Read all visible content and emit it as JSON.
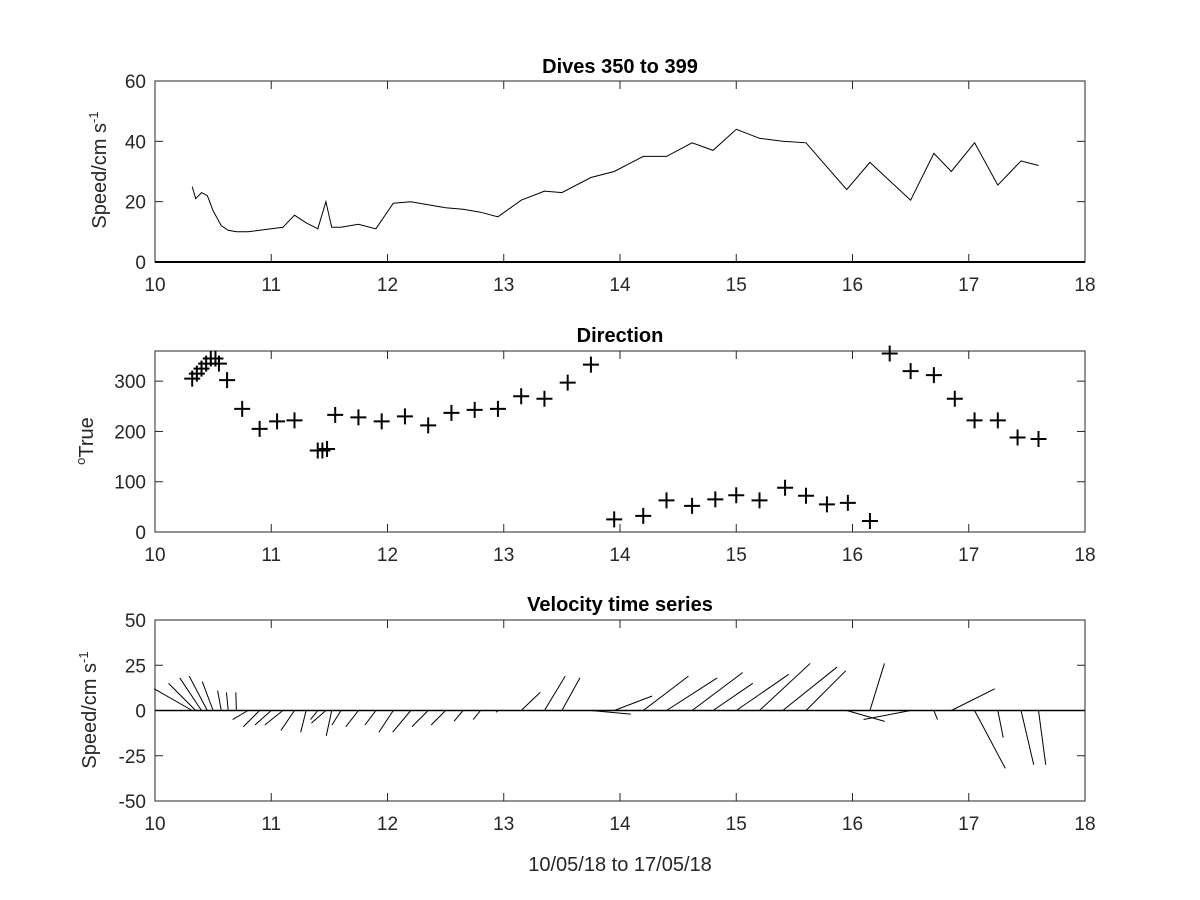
{
  "chart_data": [
    {
      "type": "line",
      "title": "Dives 350 to 399",
      "ylabel": "Speed/cm s",
      "ylabel_superscript": "-1",
      "xlim": [
        10,
        18
      ],
      "ylim": [
        0,
        60
      ],
      "xticks": [
        10,
        11,
        12,
        13,
        14,
        15,
        16,
        17,
        18
      ],
      "yticks": [
        0,
        20,
        40,
        60
      ],
      "color": "#000000",
      "series": [
        {
          "x": [
            10.32,
            10.35,
            10.4,
            10.45,
            10.5,
            10.57,
            10.63,
            10.7,
            10.8,
            10.9,
            11.0,
            11.1,
            11.2,
            11.3,
            11.4,
            11.47,
            11.52,
            11.6,
            11.75,
            11.9,
            12.05,
            12.2,
            12.35,
            12.5,
            12.65,
            12.8,
            12.95,
            13.15,
            13.35,
            13.5,
            13.75,
            13.95,
            14.2,
            14.4,
            14.62,
            14.8,
            15.0,
            15.2,
            15.4,
            15.6,
            15.95,
            16.15,
            16.5,
            16.7,
            16.85,
            17.05,
            17.25,
            17.45,
            17.6
          ],
          "y": [
            25,
            21,
            23,
            22,
            17,
            12,
            10.5,
            10,
            10,
            10.5,
            11,
            11.5,
            15.5,
            13,
            11,
            20,
            11.5,
            11.5,
            12.5,
            11,
            19.5,
            20,
            19,
            18,
            17.5,
            16.5,
            15,
            20.5,
            23.5,
            23,
            28,
            30,
            35,
            35,
            39.5,
            37,
            44,
            41,
            40,
            39.5,
            24,
            33,
            20.5,
            36,
            30,
            39.5,
            25.5,
            33.5,
            32
          ]
        }
      ]
    },
    {
      "type": "scatter",
      "title": "Direction",
      "ylabel": "True",
      "ylabel_prefix_superscript": "o",
      "xlim": [
        10,
        18
      ],
      "ylim": [
        0,
        360
      ],
      "xticks": [
        10,
        11,
        12,
        13,
        14,
        15,
        16,
        17,
        18
      ],
      "yticks": [
        0,
        100,
        200,
        300
      ],
      "marker": "+",
      "color": "#000000",
      "series": [
        {
          "x": [
            10.32,
            10.36,
            10.4,
            10.44,
            10.48,
            10.52,
            10.55,
            10.62,
            10.75,
            10.9,
            11.05,
            11.2,
            11.4,
            11.44,
            11.48,
            11.55,
            11.75,
            11.95,
            12.15,
            12.35,
            12.55,
            12.75,
            12.95,
            13.15,
            13.35,
            13.55,
            13.75,
            13.95,
            14.2,
            14.4,
            14.62,
            14.82,
            15.0,
            15.2,
            15.42,
            15.6,
            15.78,
            15.96,
            16.15,
            16.32,
            16.5,
            16.7,
            16.88,
            17.05,
            17.25,
            17.42,
            17.6
          ],
          "y": [
            305,
            315,
            325,
            335,
            345,
            345,
            335,
            302,
            245,
            205,
            220,
            222,
            162,
            162,
            165,
            233,
            228,
            220,
            230,
            212,
            237,
            243,
            245,
            270,
            265,
            297,
            333,
            25,
            32,
            63,
            52,
            65,
            73,
            63,
            88,
            72,
            55,
            58,
            22,
            355,
            320,
            312,
            265,
            222,
            222,
            188,
            185
          ]
        }
      ]
    },
    {
      "type": "line",
      "subtype": "stick-vector",
      "title": "Velocity time series",
      "ylabel": "Speed/cm s",
      "ylabel_superscript": "-1",
      "xlabel": "10/05/18 to 17/05/18",
      "xlim": [
        10,
        18
      ],
      "ylim": [
        -50,
        50
      ],
      "xticks": [
        10,
        11,
        12,
        13,
        14,
        15,
        16,
        17,
        18
      ],
      "yticks": [
        -50,
        -25,
        0,
        25,
        50
      ],
      "color": "#000000",
      "series": [
        {
          "x": [
            10.32,
            10.35,
            10.4,
            10.45,
            10.5,
            10.57,
            10.63,
            10.7,
            10.8,
            10.9,
            11.0,
            11.1,
            11.2,
            11.3,
            11.4,
            11.47,
            11.52,
            11.6,
            11.75,
            11.9,
            12.05,
            12.2,
            12.35,
            12.5,
            12.65,
            12.8,
            12.95,
            13.15,
            13.35,
            13.5,
            13.75,
            13.95,
            14.2,
            14.4,
            14.62,
            14.8,
            15.0,
            15.2,
            15.4,
            15.6,
            15.95,
            16.15,
            16.5,
            16.7,
            16.85,
            17.05,
            17.25,
            17.45,
            17.6
          ],
          "u": [
            -21,
            -15,
            -12,
            -10,
            -6,
            -2,
            -1,
            -0.3,
            -8.5,
            -9,
            -9,
            -10,
            -7.5,
            -3,
            -4,
            -8,
            -3,
            -5,
            -7,
            -6,
            -8,
            -10,
            -9,
            -8,
            -5,
            -4,
            -1,
            10.5,
            11.5,
            10,
            22,
            21,
            25,
            28,
            28,
            22,
            29,
            28,
            30,
            22,
            21,
            8,
            -26,
            2,
            24,
            17,
            3,
            7,
            4
          ],
          "v": [
            12,
            15,
            18,
            19,
            16,
            11,
            10,
            10,
            -5,
            -9,
            -8,
            -8,
            -11,
            -12,
            -5,
            -7,
            -14,
            -8,
            -9,
            -8,
            -12,
            -12,
            -9,
            -8,
            -6,
            -5,
            -1,
            10,
            19,
            18,
            -2,
            8,
            19,
            18,
            21,
            15,
            20,
            26,
            24,
            22,
            -6,
            26,
            -5,
            -5,
            12,
            -32,
            -15,
            -30,
            -30
          ]
        }
      ]
    }
  ]
}
